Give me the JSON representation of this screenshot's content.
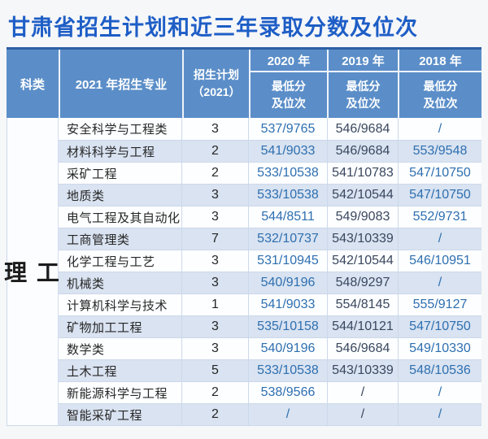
{
  "title": "甘肃省招生计划和近三年录取分数及位次",
  "colors": {
    "title_blue": "#1e5ec6",
    "header_bg": "#5b8ec8",
    "header_top_border": "#2e5fa5",
    "stripe_blue": "#d9e3f1",
    "score_blue": "#2e6fb0",
    "score_dark": "#39475f"
  },
  "table": {
    "headers": {
      "category": "科类",
      "major": "2021 年招生专业",
      "plan_line1": "招生计划",
      "plan_line2": "（2021）",
      "years": {
        "y2020": "2020 年",
        "y2019": "2019 年",
        "y2018": "2018 年"
      },
      "sub_line1": "最低分",
      "sub_line2": "及位次"
    },
    "category_label": "理 工",
    "rows": [
      {
        "major": "安全科学与工程类",
        "plan": "3",
        "y2020": "537/9765",
        "y2019": "546/9684",
        "y2018": "/"
      },
      {
        "major": "材料科学与工程",
        "plan": "2",
        "y2020": "541/9033",
        "y2019": "546/9684",
        "y2018": "553/9548"
      },
      {
        "major": "采矿工程",
        "plan": "2",
        "y2020": "533/10538",
        "y2019": "541/10783",
        "y2018": "547/10750"
      },
      {
        "major": "地质类",
        "plan": "3",
        "y2020": "533/10538",
        "y2019": "542/10544",
        "y2018": "547/10750"
      },
      {
        "major": "电气工程及其自动化",
        "plan": "3",
        "y2020": "544/8511",
        "y2019": "549/9083",
        "y2018": "552/9731"
      },
      {
        "major": "工商管理类",
        "plan": "7",
        "y2020": "532/10737",
        "y2019": "543/10339",
        "y2018": "/"
      },
      {
        "major": "化学工程与工艺",
        "plan": "3",
        "y2020": "531/10945",
        "y2019": "542/10544",
        "y2018": "546/10951"
      },
      {
        "major": "机械类",
        "plan": "3",
        "y2020": "540/9196",
        "y2019": "548/9297",
        "y2018": "/"
      },
      {
        "major": "计算机科学与技术",
        "plan": "1",
        "y2020": "541/9033",
        "y2019": "554/8145",
        "y2018": "555/9127"
      },
      {
        "major": "矿物加工工程",
        "plan": "3",
        "y2020": "535/10158",
        "y2019": "544/10121",
        "y2018": "547/10750"
      },
      {
        "major": "数学类",
        "plan": "3",
        "y2020": "540/9196",
        "y2019": "546/9684",
        "y2018": "549/10330"
      },
      {
        "major": "土木工程",
        "plan": "5",
        "y2020": "533/10538",
        "y2019": "543/10339",
        "y2018": "548/10536"
      },
      {
        "major": "新能源科学与工程",
        "plan": "2",
        "y2020": "538/9566",
        "y2019": "/",
        "y2018": "/"
      },
      {
        "major": "智能采矿工程",
        "plan": "2",
        "y2020": "/",
        "y2019": "/",
        "y2018": "/"
      }
    ]
  },
  "chart_data": {
    "type": "table",
    "title": "甘肃省招生计划和近三年录取分数及位次",
    "columns": [
      "科类",
      "2021 年招生专业",
      "招生计划（2021）",
      "2020 年 最低分及位次",
      "2019 年 最低分及位次",
      "2018 年 最低分及位次"
    ]
  }
}
